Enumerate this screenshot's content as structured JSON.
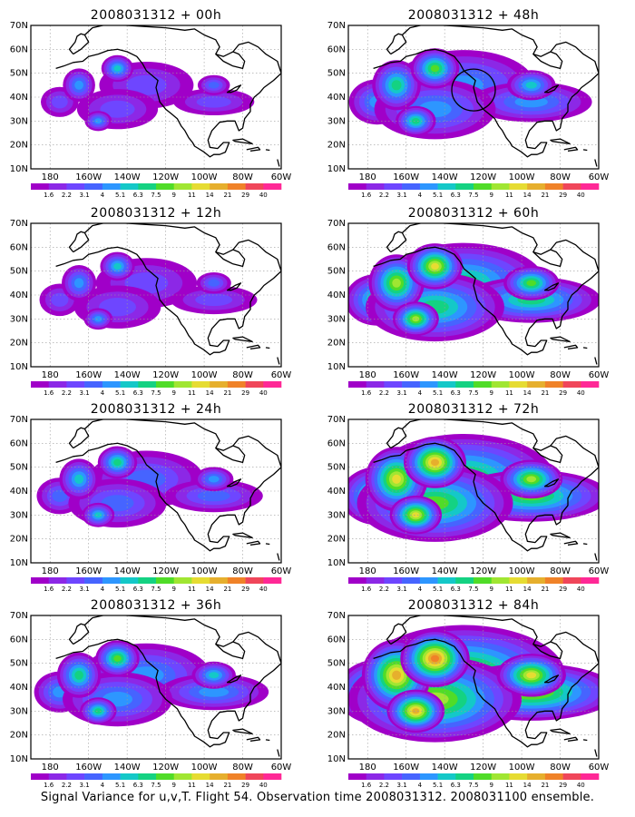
{
  "footer": "Signal Variance for u,v,T. Flight 54. Observation time 2008031312. 2008031100 ensemble.",
  "lat_labels": [
    "10N",
    "20N",
    "30N",
    "40N",
    "50N",
    "60N",
    "70N"
  ],
  "lon_labels": [
    "180",
    "160W",
    "140W",
    "120W",
    "100W",
    "80W",
    "60W"
  ],
  "colorbar": {
    "labels": [
      "1.6",
      "2.2",
      "3.1",
      "4",
      "5.1",
      "6.3",
      "7.5",
      "9",
      "11",
      "14",
      "21",
      "29",
      "40"
    ],
    "colors": [
      "#a000c8",
      "#8c28e6",
      "#6e46ff",
      "#4664ff",
      "#2d96ff",
      "#14c8c8",
      "#14d282",
      "#50dc28",
      "#a0e632",
      "#e6dc32",
      "#e6af2d",
      "#f08228",
      "#f0465a",
      "#ff2896"
    ]
  },
  "panels": [
    {
      "title": "2008031312 + 00h",
      "intensity": 0.2
    },
    {
      "title": "2008031312 + 48h",
      "intensity": 0.55
    },
    {
      "title": "2008031312 + 12h",
      "intensity": 0.25
    },
    {
      "title": "2008031312 + 60h",
      "intensity": 0.7
    },
    {
      "title": "2008031312 + 24h",
      "intensity": 0.35
    },
    {
      "title": "2008031312 + 72h",
      "intensity": 0.85
    },
    {
      "title": "2008031312 + 36h",
      "intensity": 0.45
    },
    {
      "title": "2008031312 + 84h",
      "intensity": 1.0
    }
  ],
  "map_extent": {
    "lon_min": 170,
    "lon_max": 300,
    "lat_min": 10,
    "lat_max": 70
  }
}
